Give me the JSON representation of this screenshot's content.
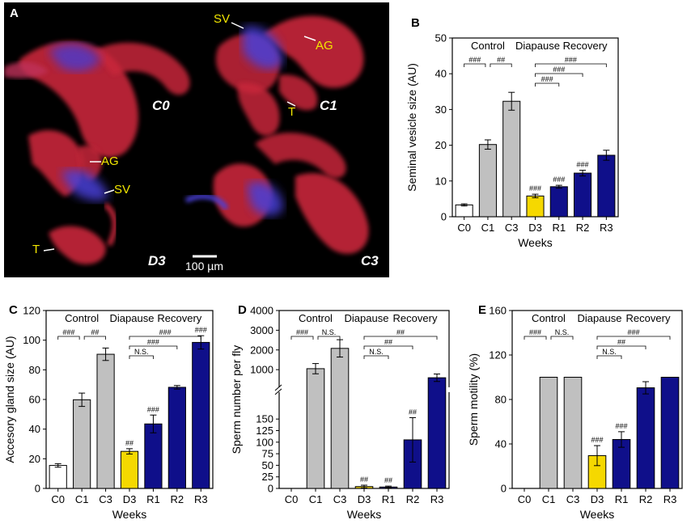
{
  "colors": {
    "control": "#c0c0c0",
    "control_first": "#ffffff",
    "diapause": "#f5d800",
    "recovery": "#0f0f8a",
    "axis": "#000000",
    "micro_label": "#f2e600",
    "micro_red": "#d42a3c",
    "micro_blue": "#3a40d8"
  },
  "panel_a": {
    "letter": "A",
    "stage_labels": [
      "C0",
      "C1",
      "D3",
      "C3"
    ],
    "structure_labels": [
      "SV",
      "AG",
      "T",
      "AG",
      "SV",
      "T"
    ],
    "scale_bar": "100 µm"
  },
  "chart_data": [
    {
      "panel": "B",
      "type": "bar",
      "categories": [
        "C0",
        "C1",
        "C3",
        "D3",
        "R1",
        "R2",
        "R3"
      ],
      "groups": [
        "control",
        "control",
        "control",
        "diapause",
        "recovery",
        "recovery",
        "recovery"
      ],
      "values": [
        3.3,
        20.2,
        32.3,
        5.8,
        8.4,
        12.2,
        17.2
      ],
      "errors": [
        0.3,
        1.3,
        2.5,
        0.5,
        0.4,
        0.8,
        1.4
      ],
      "marks": [
        "",
        "",
        "",
        "###",
        "###",
        "###",
        ""
      ],
      "title": "",
      "xlabel": "Weeks",
      "ylabel": "Seminal vesicle size (AU)",
      "ylim": [
        0,
        50
      ],
      "yticks": [
        0,
        10,
        20,
        30,
        40,
        50
      ],
      "group_labels": [
        "Control",
        "Diapause",
        "Recovery"
      ],
      "brackets": [
        {
          "from": 0,
          "to": 1,
          "text": "###"
        },
        {
          "from": 1,
          "to": 2,
          "text": "##"
        },
        {
          "from": 3,
          "to": 6,
          "text": "###"
        },
        {
          "from": 3,
          "to": 5,
          "text": "###"
        },
        {
          "from": 3,
          "to": 4,
          "text": "###"
        }
      ]
    },
    {
      "panel": "C",
      "type": "bar",
      "categories": [
        "C0",
        "C1",
        "C3",
        "D3",
        "R1",
        "R2",
        "R3"
      ],
      "groups": [
        "control",
        "control",
        "control",
        "diapause",
        "recovery",
        "recovery",
        "recovery"
      ],
      "values": [
        15.5,
        59.8,
        90.5,
        25,
        43.5,
        68.2,
        98.5
      ],
      "errors": [
        1.2,
        4.5,
        4.2,
        1.8,
        6,
        1.2,
        4.5
      ],
      "marks": [
        "",
        "",
        "",
        "##",
        "###",
        "",
        "###"
      ],
      "title": "",
      "xlabel": "Weeks",
      "ylabel": "Accesory gland size (AU)",
      "ylim": [
        0,
        120
      ],
      "yticks": [
        0,
        20,
        40,
        60,
        80,
        100,
        120
      ],
      "group_labels": [
        "Control",
        "Diapause",
        "Recovery"
      ],
      "brackets": [
        {
          "from": 0,
          "to": 1,
          "text": "###"
        },
        {
          "from": 1,
          "to": 2,
          "text": "##"
        },
        {
          "from": 3,
          "to": 6,
          "text": "###"
        },
        {
          "from": 3,
          "to": 5,
          "text": "###"
        },
        {
          "from": 3,
          "to": 4,
          "text": "N.S."
        }
      ]
    },
    {
      "panel": "D",
      "type": "bar",
      "broken_axis": true,
      "categories": [
        "C0",
        "C1",
        "C3",
        "D3",
        "R1",
        "R2",
        "R3"
      ],
      "groups": [
        "control",
        "control",
        "control",
        "diapause",
        "recovery",
        "recovery",
        "recovery"
      ],
      "values": [
        0,
        1050,
        2080,
        4,
        3,
        105,
        590
      ],
      "errors": [
        0,
        260,
        440,
        3,
        2,
        48,
        190
      ],
      "marks": [
        "",
        "",
        "",
        "##",
        "##",
        "##",
        ""
      ],
      "title": "",
      "xlabel": "Weeks",
      "ylabel": "Sperm number per fly",
      "lower_range": [
        0,
        200
      ],
      "lower_ticks": [
        0,
        25,
        50,
        75,
        100,
        125,
        150
      ],
      "upper_range": [
        300,
        4000
      ],
      "upper_ticks": [
        1000,
        2000,
        3000,
        4000
      ],
      "group_labels": [
        "Control",
        "Diapause",
        "Recovery"
      ],
      "brackets": [
        {
          "from": 0,
          "to": 1,
          "text": "###"
        },
        {
          "from": 1,
          "to": 2,
          "text": "N.S."
        },
        {
          "from": 3,
          "to": 6,
          "text": "##"
        },
        {
          "from": 3,
          "to": 5,
          "text": "##"
        },
        {
          "from": 3,
          "to": 4,
          "text": "N.S."
        }
      ]
    },
    {
      "panel": "E",
      "type": "bar",
      "categories": [
        "C0",
        "C1",
        "C3",
        "D3",
        "R1",
        "R2",
        "R3"
      ],
      "groups": [
        "control",
        "control",
        "control",
        "diapause",
        "recovery",
        "recovery",
        "recovery"
      ],
      "values": [
        0,
        100,
        100,
        29.5,
        44,
        90.5,
        100
      ],
      "errors": [
        0,
        0,
        0,
        9,
        7,
        5.5,
        0
      ],
      "marks": [
        "",
        "",
        "",
        "###",
        "###",
        "",
        ""
      ],
      "title": "",
      "xlabel": "Weeks",
      "ylabel": "Sperm motility (%)",
      "ylim": [
        0,
        160
      ],
      "yticks": [
        0,
        40,
        80,
        120,
        160
      ],
      "group_labels": [
        "Control",
        "Diapause",
        "Recovery"
      ],
      "brackets": [
        {
          "from": 0,
          "to": 1,
          "text": "###"
        },
        {
          "from": 1,
          "to": 2,
          "text": "N.S."
        },
        {
          "from": 3,
          "to": 6,
          "text": "###"
        },
        {
          "from": 3,
          "to": 5,
          "text": "##"
        },
        {
          "from": 3,
          "to": 4,
          "text": "N.S."
        }
      ]
    }
  ]
}
